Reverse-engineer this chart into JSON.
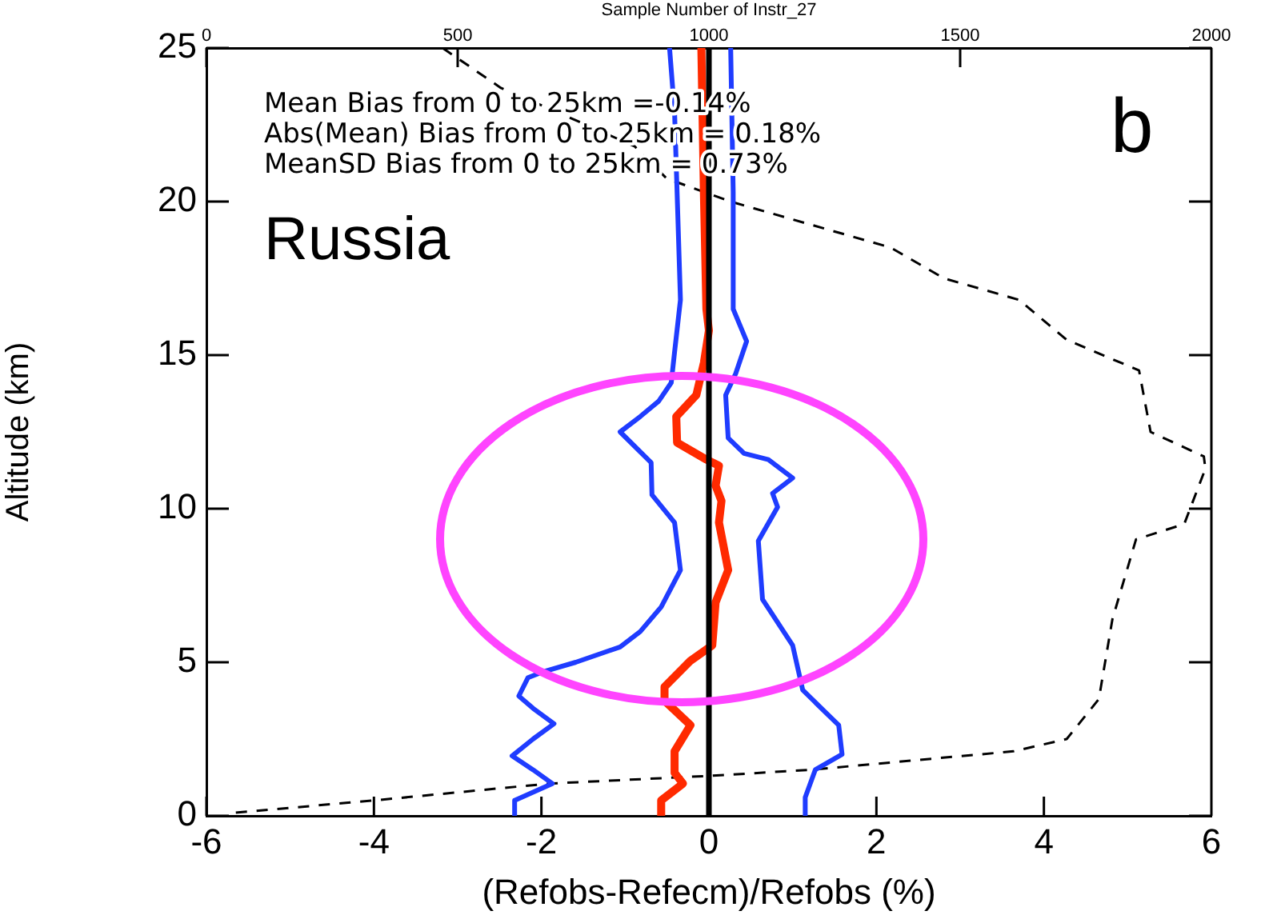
{
  "chart_data": {
    "type": "line",
    "xlabel": "(Refobs-Refecm)/Refobs (%)",
    "ylabel": "Altitude (km)",
    "x2label": "Sample Number of Instr_27",
    "xlim": [
      -6,
      6
    ],
    "xticks": [
      -6,
      -4,
      -2,
      0,
      2,
      4,
      6
    ],
    "ylim": [
      0,
      25
    ],
    "yticks": [
      0,
      5,
      10,
      15,
      20,
      25
    ],
    "x2lim": [
      0,
      2000
    ],
    "x2ticks": [
      0,
      500,
      1000,
      1500,
      2000
    ],
    "grid": false,
    "legend": false,
    "marker": "none",
    "series": [
      {
        "color": "#1f3cff",
        "x": [
          -0.47,
          -0.41,
          -0.38,
          -0.34,
          -0.41,
          -0.45,
          -0.6,
          -0.82,
          -1.06,
          -0.69,
          -0.68,
          -0.41,
          -0.34,
          -0.57,
          -0.82,
          -1.06,
          -1.59,
          -1.97,
          -2.16,
          -2.27,
          -2.1,
          -1.85,
          -2.1,
          -2.35,
          -2.1,
          -1.87,
          -2.32,
          -2.32
        ],
        "values": [
          25,
          22.9,
          20.3,
          16.8,
          15.1,
          14.1,
          13.5,
          13.0,
          12.5,
          11.5,
          10.45,
          9.55,
          8.0,
          6.8,
          6.0,
          5.5,
          5.0,
          4.7,
          4.5,
          3.9,
          3.5,
          3.0,
          2.5,
          1.95,
          1.5,
          1.05,
          0.5,
          0
        ]
      },
      {
        "color": "#ff2a00",
        "x": [
          -0.09,
          -0.06,
          -0.03,
          0.0,
          -0.06,
          -0.15,
          -0.39,
          -0.38,
          -0.03,
          0.12,
          0.08,
          0.15,
          0.12,
          0.23,
          0.08,
          0.04,
          -0.22,
          -0.53,
          -0.53,
          -0.22,
          -0.41,
          -0.41,
          -0.31,
          -0.57,
          -0.57
        ],
        "values": [
          25,
          20.3,
          16.5,
          15.8,
          14.75,
          13.7,
          13.0,
          12.15,
          11.6,
          11.4,
          10.75,
          10.25,
          9.55,
          8.0,
          6.95,
          5.55,
          5.05,
          4.2,
          3.75,
          2.95,
          2.1,
          1.4,
          1.05,
          0.5,
          0
        ]
      },
      {
        "color": "#1f3cff",
        "x": [
          0.26,
          0.29,
          0.29,
          0.45,
          0.32,
          0.2,
          0.23,
          0.42,
          0.71,
          1.0,
          0.76,
          0.82,
          0.59,
          0.64,
          1.0,
          1.12,
          1.38,
          1.55,
          1.59,
          1.27,
          1.15,
          1.15
        ],
        "values": [
          25,
          20.3,
          16.5,
          15.45,
          14.4,
          13.7,
          12.3,
          11.8,
          11.6,
          11.0,
          10.5,
          10.05,
          8.95,
          7.05,
          5.55,
          4.1,
          3.4,
          2.95,
          2.0,
          1.5,
          0.6,
          0
        ]
      },
      {
        "color": "#000000",
        "axis": "x2",
        "line_style": "dashed",
        "x": [
          470,
          586,
          672,
          852,
          916,
          1043,
          1362,
          1468,
          1617,
          1712,
          1856,
          1879,
          1985,
          1988,
          1946,
          1850,
          1803,
          1776,
          1712,
          1606,
          1203,
          1000,
          682,
          332,
          56
        ],
        "values": [
          25,
          23.7,
          23.1,
          21.8,
          20.75,
          20.0,
          18.5,
          17.5,
          16.8,
          15.5,
          14.5,
          12.5,
          11.7,
          11.3,
          9.5,
          9.0,
          6.4,
          3.8,
          2.5,
          2.1,
          1.5,
          1.3,
          1.05,
          0.5,
          0.1
        ]
      }
    ],
    "ref_lines": [
      {
        "axis": "x",
        "value": 0,
        "color": "#000000"
      }
    ],
    "annotations": [
      "Mean Bias from 0 to 25km =-0.14%",
      "Abs(Mean) Bias from 0 to 25km = 0.18%",
      "MeanSD Bias from 0 to 25km = 0.73%",
      "Russia",
      "b"
    ]
  }
}
